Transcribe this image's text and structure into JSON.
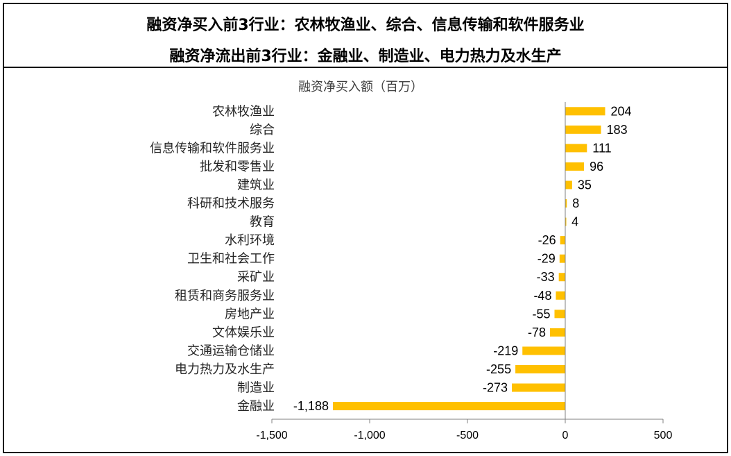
{
  "header": {
    "line1": "融资净买入前3行业：农林牧渔业、综合、信息传输和软件服务业",
    "line2": "融资净流出前3行业：金融业、制造业、电力热力及水生产"
  },
  "chart_data": {
    "type": "bar",
    "orientation": "horizontal",
    "title": "融资净买入额（百万）",
    "categories": [
      "农林牧渔业",
      "综合",
      "信息传输和软件服务业",
      "批发和零售业",
      "建筑业",
      "科研和技术服务",
      "教育",
      "水利环境",
      "卫生和社会工作",
      "采矿业",
      "租赁和商务服务业",
      "房地产业",
      "文体娱乐业",
      "交通运输仓储业",
      "电力热力及水生产",
      "制造业",
      "金融业"
    ],
    "values": [
      204,
      183,
      111,
      96,
      35,
      8,
      4,
      -26,
      -29,
      -33,
      -48,
      -55,
      -78,
      -219,
      -255,
      -273,
      -1188
    ],
    "value_labels": [
      "204",
      "183",
      "111",
      "96",
      "35",
      "8",
      "4",
      "-26",
      "-29",
      "-33",
      "-48",
      "-55",
      "-78",
      "-219",
      "-255",
      "-273",
      "-1,188"
    ],
    "xlim": [
      -1500,
      500
    ],
    "xticks": [
      -1500,
      -1000,
      -500,
      0,
      500
    ],
    "xtick_labels": [
      "-1,500",
      "-1,000",
      "-500",
      "0",
      "500"
    ],
    "bar_color": "#FFC000",
    "xlabel": "",
    "ylabel": "",
    "grid": false,
    "legend": "none"
  }
}
